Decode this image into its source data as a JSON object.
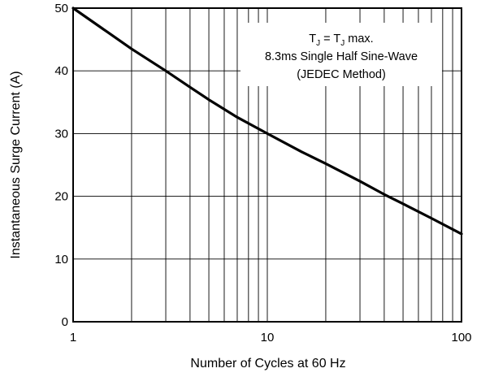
{
  "chart_data": {
    "type": "line",
    "title": "",
    "xlabel": "Number of Cycles at 60 Hz",
    "ylabel": "Instantaneous Surge Current (A)",
    "x_scale": "log",
    "xlim": [
      1,
      100
    ],
    "ylim": [
      0,
      50
    ],
    "x_ticks": [
      1,
      10,
      100
    ],
    "x_tick_labels": [
      "1",
      "10",
      "100"
    ],
    "y_ticks": [
      0,
      10,
      20,
      30,
      40,
      50
    ],
    "y_tick_labels": [
      "0",
      "10",
      "20",
      "30",
      "40",
      "50"
    ],
    "grid": true,
    "series": [
      {
        "color": "#000000",
        "x": [
          1,
          1.5,
          2,
          3,
          4,
          5,
          7,
          10,
          15,
          20,
          30,
          40,
          50,
          70,
          100
        ],
        "y": [
          50,
          46.2,
          43.5,
          40,
          37.4,
          35.4,
          32.6,
          30,
          27.1,
          25.2,
          22.4,
          20.3,
          18.8,
          16.5,
          14
        ]
      }
    ],
    "annotation": {
      "lines": [
        "TJ = TJ max.",
        "8.3ms Single Half Sine-Wave",
        "(JEDEC Method)"
      ]
    }
  }
}
